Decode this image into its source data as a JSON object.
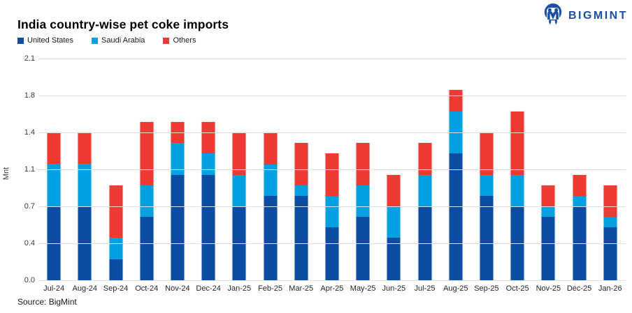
{
  "header": {
    "title": "India country-wise pet coke imports",
    "brand": {
      "name": "BIGMINT",
      "color": "#1C4FA1"
    }
  },
  "chart_data": {
    "type": "bar",
    "stacked": true,
    "title": "India country-wise pet coke imports",
    "ylabel": "Mnt",
    "xlabel": "",
    "ylim": [
      0,
      2.1
    ],
    "grid": "horizontal",
    "legend_position": "top-left",
    "ytick_labels": [
      "2.1",
      "1.8",
      "1.4",
      "1.1",
      "0.7",
      "0.4",
      "0.0"
    ],
    "ytick_values": [
      2.1,
      1.75,
      1.4,
      1.05,
      0.7,
      0.35,
      0.0
    ],
    "categories": [
      "Jul-24",
      "Aug-24",
      "Sep-24",
      "Oct-24",
      "Nov-24",
      "Dec-24",
      "Jan-25",
      "Feb-25",
      "Mar-25",
      "Apr-25",
      "May-25",
      "Jun-25",
      "Jul-25",
      "Aug-25",
      "Sep-25",
      "Oct-25",
      "Nov-25",
      "Dec-25",
      "Jan-26"
    ],
    "series": [
      {
        "name": "United States",
        "color": "#0B4DA2",
        "values": [
          0.7,
          0.7,
          0.2,
          0.6,
          1.0,
          1.0,
          0.7,
          0.8,
          0.8,
          0.5,
          0.6,
          0.4,
          0.7,
          1.2,
          0.8,
          0.7,
          0.6,
          0.7,
          0.5
        ]
      },
      {
        "name": "Saudi Arabia",
        "color": "#00A0E1",
        "values": [
          0.4,
          0.4,
          0.2,
          0.3,
          0.3,
          0.2,
          0.3,
          0.3,
          0.1,
          0.3,
          0.3,
          0.3,
          0.3,
          0.4,
          0.2,
          0.3,
          0.1,
          0.1,
          0.1
        ]
      },
      {
        "name": "Others",
        "color": "#EE3A33",
        "values": [
          0.3,
          0.3,
          0.5,
          0.6,
          0.2,
          0.3,
          0.4,
          0.3,
          0.4,
          0.4,
          0.4,
          0.3,
          0.3,
          0.2,
          0.4,
          0.6,
          0.2,
          0.2,
          0.3
        ]
      }
    ]
  },
  "footer": {
    "source": "Source: BigMint"
  }
}
